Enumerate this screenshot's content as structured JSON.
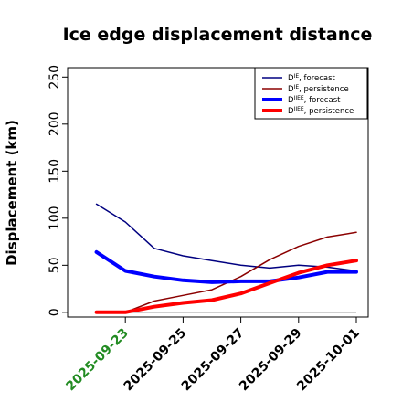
{
  "chart_data": {
    "type": "line",
    "title": "Ice edge displacement distance",
    "xlabel": "",
    "ylabel": "Displacement (km)",
    "x": [
      "2025-09-22",
      "2025-09-23",
      "2025-09-24",
      "2025-09-25",
      "2025-09-26",
      "2025-09-27",
      "2025-09-28",
      "2025-09-29",
      "2025-09-30",
      "2025-10-01"
    ],
    "x_ticks": [
      {
        "label": "2025-09-23",
        "value": "2025-09-23",
        "color": "#228b22"
      },
      {
        "label": "2025-09-25",
        "value": "2025-09-25",
        "color": "#000000"
      },
      {
        "label": "2025-09-27",
        "value": "2025-09-27",
        "color": "#000000"
      },
      {
        "label": "2025-09-29",
        "value": "2025-09-29",
        "color": "#000000"
      },
      {
        "label": "2025-10-01",
        "value": "2025-10-01",
        "color": "#000000"
      }
    ],
    "xlim": [
      "2025-09-21",
      "2025-10-01"
    ],
    "ylim": [
      -5,
      260
    ],
    "y_ticks": [
      0,
      50,
      100,
      150,
      200,
      250
    ],
    "zero_line": true,
    "grid": false,
    "legend_position": "top-right",
    "series": [
      {
        "name_main": "D",
        "name_sup": "IE",
        "name_rest": ", forecast",
        "color": "#000080",
        "width": 1.5,
        "values": [
          115,
          96,
          68,
          60,
          55,
          50,
          47,
          50,
          48,
          44
        ]
      },
      {
        "name_main": "D",
        "name_sup": "IE",
        "name_rest": ", persistence",
        "color": "#8b0000",
        "width": 1.5,
        "values": [
          0,
          0,
          12,
          18,
          24,
          38,
          56,
          70,
          80,
          85
        ]
      },
      {
        "name_main": "D",
        "name_sup": "IIEE",
        "name_rest": ", forecast",
        "color": "#0000ff",
        "width": 4,
        "values": [
          64,
          44,
          38,
          34,
          32,
          33,
          33,
          37,
          43,
          43
        ]
      },
      {
        "name_main": "D",
        "name_sup": "IIEE",
        "name_rest": ", persistence",
        "color": "#ff0000",
        "width": 4,
        "values": [
          0,
          0,
          6,
          10,
          13,
          20,
          31,
          42,
          50,
          55
        ]
      }
    ]
  }
}
